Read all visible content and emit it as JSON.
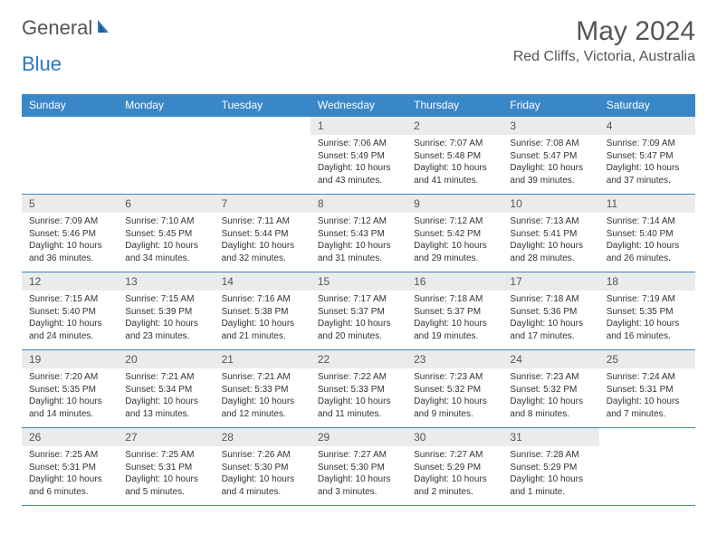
{
  "logo": {
    "text1": "General",
    "text2": "Blue"
  },
  "title": "May 2024",
  "location": "Red Cliffs, Victoria, Australia",
  "colors": {
    "header_bg": "#3a87c8",
    "header_text": "#ffffff",
    "border": "#3a87c8",
    "daynum_bg": "#e9eceb",
    "text": "#555555",
    "logo_blue": "#2a78c2"
  },
  "weekdays": [
    "Sunday",
    "Monday",
    "Tuesday",
    "Wednesday",
    "Thursday",
    "Friday",
    "Saturday"
  ],
  "weeks": [
    [
      null,
      null,
      null,
      {
        "d": "1",
        "sr": "7:06 AM",
        "ss": "5:49 PM",
        "dl": "10 hours and 43 minutes."
      },
      {
        "d": "2",
        "sr": "7:07 AM",
        "ss": "5:48 PM",
        "dl": "10 hours and 41 minutes."
      },
      {
        "d": "3",
        "sr": "7:08 AM",
        "ss": "5:47 PM",
        "dl": "10 hours and 39 minutes."
      },
      {
        "d": "4",
        "sr": "7:09 AM",
        "ss": "5:47 PM",
        "dl": "10 hours and 37 minutes."
      }
    ],
    [
      {
        "d": "5",
        "sr": "7:09 AM",
        "ss": "5:46 PM",
        "dl": "10 hours and 36 minutes."
      },
      {
        "d": "6",
        "sr": "7:10 AM",
        "ss": "5:45 PM",
        "dl": "10 hours and 34 minutes."
      },
      {
        "d": "7",
        "sr": "7:11 AM",
        "ss": "5:44 PM",
        "dl": "10 hours and 32 minutes."
      },
      {
        "d": "8",
        "sr": "7:12 AM",
        "ss": "5:43 PM",
        "dl": "10 hours and 31 minutes."
      },
      {
        "d": "9",
        "sr": "7:12 AM",
        "ss": "5:42 PM",
        "dl": "10 hours and 29 minutes."
      },
      {
        "d": "10",
        "sr": "7:13 AM",
        "ss": "5:41 PM",
        "dl": "10 hours and 28 minutes."
      },
      {
        "d": "11",
        "sr": "7:14 AM",
        "ss": "5:40 PM",
        "dl": "10 hours and 26 minutes."
      }
    ],
    [
      {
        "d": "12",
        "sr": "7:15 AM",
        "ss": "5:40 PM",
        "dl": "10 hours and 24 minutes."
      },
      {
        "d": "13",
        "sr": "7:15 AM",
        "ss": "5:39 PM",
        "dl": "10 hours and 23 minutes."
      },
      {
        "d": "14",
        "sr": "7:16 AM",
        "ss": "5:38 PM",
        "dl": "10 hours and 21 minutes."
      },
      {
        "d": "15",
        "sr": "7:17 AM",
        "ss": "5:37 PM",
        "dl": "10 hours and 20 minutes."
      },
      {
        "d": "16",
        "sr": "7:18 AM",
        "ss": "5:37 PM",
        "dl": "10 hours and 19 minutes."
      },
      {
        "d": "17",
        "sr": "7:18 AM",
        "ss": "5:36 PM",
        "dl": "10 hours and 17 minutes."
      },
      {
        "d": "18",
        "sr": "7:19 AM",
        "ss": "5:35 PM",
        "dl": "10 hours and 16 minutes."
      }
    ],
    [
      {
        "d": "19",
        "sr": "7:20 AM",
        "ss": "5:35 PM",
        "dl": "10 hours and 14 minutes."
      },
      {
        "d": "20",
        "sr": "7:21 AM",
        "ss": "5:34 PM",
        "dl": "10 hours and 13 minutes."
      },
      {
        "d": "21",
        "sr": "7:21 AM",
        "ss": "5:33 PM",
        "dl": "10 hours and 12 minutes."
      },
      {
        "d": "22",
        "sr": "7:22 AM",
        "ss": "5:33 PM",
        "dl": "10 hours and 11 minutes."
      },
      {
        "d": "23",
        "sr": "7:23 AM",
        "ss": "5:32 PM",
        "dl": "10 hours and 9 minutes."
      },
      {
        "d": "24",
        "sr": "7:23 AM",
        "ss": "5:32 PM",
        "dl": "10 hours and 8 minutes."
      },
      {
        "d": "25",
        "sr": "7:24 AM",
        "ss": "5:31 PM",
        "dl": "10 hours and 7 minutes."
      }
    ],
    [
      {
        "d": "26",
        "sr": "7:25 AM",
        "ss": "5:31 PM",
        "dl": "10 hours and 6 minutes."
      },
      {
        "d": "27",
        "sr": "7:25 AM",
        "ss": "5:31 PM",
        "dl": "10 hours and 5 minutes."
      },
      {
        "d": "28",
        "sr": "7:26 AM",
        "ss": "5:30 PM",
        "dl": "10 hours and 4 minutes."
      },
      {
        "d": "29",
        "sr": "7:27 AM",
        "ss": "5:30 PM",
        "dl": "10 hours and 3 minutes."
      },
      {
        "d": "30",
        "sr": "7:27 AM",
        "ss": "5:29 PM",
        "dl": "10 hours and 2 minutes."
      },
      {
        "d": "31",
        "sr": "7:28 AM",
        "ss": "5:29 PM",
        "dl": "10 hours and 1 minute."
      },
      null
    ]
  ],
  "labels": {
    "sunrise": "Sunrise:",
    "sunset": "Sunset:",
    "daylight": "Daylight:"
  }
}
